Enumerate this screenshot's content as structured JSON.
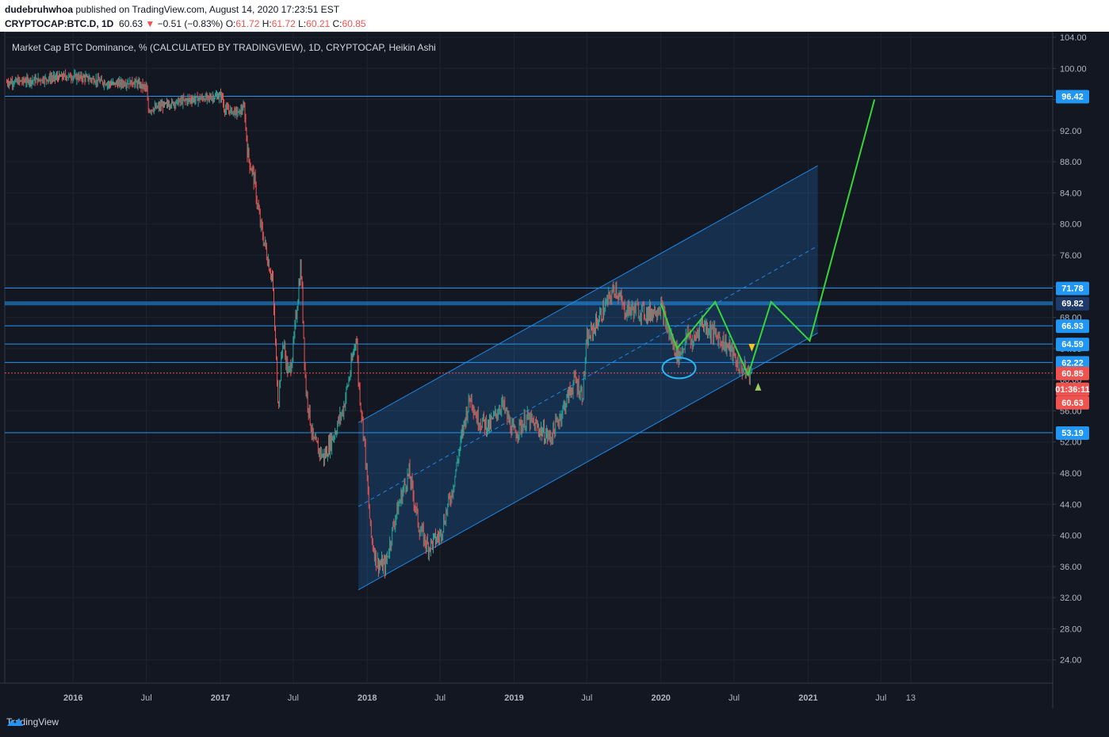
{
  "header": {
    "author": "dudebruhwhoa",
    "published_text": "published on TradingView.com, August 14, 2020 17:23:51 EST",
    "symbol": "CRYPTOCAP:BTC.D, 1D",
    "last": "60.63",
    "change": "−0.51 (−0.83%)",
    "o_label": "O:",
    "o": "61.72",
    "h_label": "H:",
    "h": "61.72",
    "l_label": "L:",
    "l": "60.21",
    "c_label": "C:",
    "c": "60.85"
  },
  "chart_title": "Market Cap BTC Dominance, % (CALCULATED BY TRADINGVIEW), 1D, CRYPTOCAP, Heikin Ashi",
  "footer": {
    "brand": "TradingView"
  },
  "colors": {
    "background": "#131722",
    "up": "#26a69a",
    "down": "#ef5350",
    "hline": "#2196f3",
    "channel": "#1e88e5",
    "projection": "#39d33a",
    "circle": "#29b6f6",
    "label_bg": "#2196f3",
    "price_label_bg": "#ef5350"
  },
  "chart_data": {
    "type": "candlestick",
    "ylim": [
      20,
      104
    ],
    "y_ticks": [
      "104.00",
      "100.00",
      "96.00",
      "92.00",
      "88.00",
      "84.00",
      "80.00",
      "76.00",
      "72.00",
      "68.00",
      "64.00",
      "60.00",
      "56.00",
      "52.00",
      "48.00",
      "44.00",
      "40.00",
      "36.00",
      "32.00",
      "28.00",
      "24.00"
    ],
    "y_tick_values": [
      104,
      100,
      96,
      92,
      88,
      84,
      80,
      76,
      72,
      68,
      64,
      60,
      56,
      52,
      48,
      44,
      40,
      36,
      32,
      28,
      24
    ],
    "x_ticks": [
      "2016",
      "Jul",
      "2017",
      "Jul",
      "2018",
      "Jul",
      "2019",
      "Jul",
      "2020",
      "Jul",
      "2021",
      "Jul",
      "13"
    ],
    "x_tick_dates": [
      "2016-01-01",
      "2016-07-01",
      "2017-01-01",
      "2017-07-01",
      "2018-01-01",
      "2018-07-01",
      "2019-01-01",
      "2019-07-01",
      "2020-01-01",
      "2020-07-01",
      "2021-01-01",
      "2021-07-01",
      "2021-09-13"
    ],
    "x_range": [
      "2015-07-15",
      "2022-09-01"
    ],
    "series_path": [
      [
        "2015-07-20",
        98.2
      ],
      [
        "2015-10-01",
        98.5
      ],
      [
        "2015-12-15",
        99.0
      ],
      [
        "2016-02-01",
        98.8
      ],
      [
        "2016-04-01",
        98.0
      ],
      [
        "2016-06-01",
        98.2
      ],
      [
        "2016-07-01",
        97.5
      ],
      [
        "2016-07-06",
        94.6
      ],
      [
        "2016-08-15",
        95.3
      ],
      [
        "2016-10-15",
        96.0
      ],
      [
        "2016-12-01",
        96.2
      ],
      [
        "2017-01-05",
        96.5
      ],
      [
        "2017-01-10",
        94.8
      ],
      [
        "2017-02-15",
        94.3
      ],
      [
        "2017-03-01",
        95.0
      ],
      [
        "2017-03-10",
        89.0
      ],
      [
        "2017-03-25",
        86.0
      ],
      [
        "2017-04-10",
        80.0
      ],
      [
        "2017-05-10",
        73.0
      ],
      [
        "2017-05-25",
        57.0
      ],
      [
        "2017-06-05",
        65.0
      ],
      [
        "2017-06-20",
        60.5
      ],
      [
        "2017-07-01",
        64.0
      ],
      [
        "2017-07-20",
        75.0
      ],
      [
        "2017-08-01",
        59.0
      ],
      [
        "2017-08-20",
        52.0
      ],
      [
        "2017-09-15",
        50.0
      ],
      [
        "2017-10-10",
        53.0
      ],
      [
        "2017-11-01",
        56.0
      ],
      [
        "2017-11-20",
        61.0
      ],
      [
        "2017-12-05",
        66.0
      ],
      [
        "2017-12-10",
        60.0
      ],
      [
        "2017-12-25",
        52.0
      ],
      [
        "2018-01-10",
        40.0
      ],
      [
        "2018-01-25",
        36.5
      ],
      [
        "2018-02-15",
        36.0
      ],
      [
        "2018-03-10",
        42.0
      ],
      [
        "2018-04-01",
        46.0
      ],
      [
        "2018-04-15",
        48.0
      ],
      [
        "2018-05-10",
        41.0
      ],
      [
        "2018-06-01",
        38.5
      ],
      [
        "2018-07-01",
        40.0
      ],
      [
        "2018-08-01",
        46.0
      ],
      [
        "2018-09-01",
        55.0
      ],
      [
        "2018-09-15",
        58.0
      ],
      [
        "2018-10-01",
        55.0
      ],
      [
        "2018-11-01",
        54.0
      ],
      [
        "2018-12-01",
        57.0
      ],
      [
        "2019-01-01",
        53.0
      ],
      [
        "2019-02-01",
        55.0
      ],
      [
        "2019-04-01",
        52.5
      ],
      [
        "2019-05-01",
        56.0
      ],
      [
        "2019-06-01",
        60.0
      ],
      [
        "2019-06-20",
        58.0
      ],
      [
        "2019-07-01",
        65.0
      ],
      [
        "2019-08-01",
        68.0
      ],
      [
        "2019-09-01",
        71.0
      ],
      [
        "2019-09-10",
        72.0
      ],
      [
        "2019-10-01",
        69.0
      ],
      [
        "2019-11-01",
        69.0
      ],
      [
        "2019-12-01",
        68.5
      ],
      [
        "2020-01-01",
        69.5
      ],
      [
        "2020-01-20",
        66.0
      ],
      [
        "2020-02-05",
        64.0
      ],
      [
        "2020-02-15",
        63.0
      ],
      [
        "2020-03-10",
        66.0
      ],
      [
        "2020-03-20",
        64.5
      ],
      [
        "2020-04-10",
        67.5
      ],
      [
        "2020-05-10",
        66.0
      ],
      [
        "2020-06-01",
        65.0
      ],
      [
        "2020-06-20",
        64.0
      ],
      [
        "2020-07-10",
        62.0
      ],
      [
        "2020-08-01",
        61.0
      ],
      [
        "2020-08-14",
        60.63
      ]
    ],
    "horizontal_levels": [
      {
        "value": 96.42,
        "label": "96.42"
      },
      {
        "value": 71.78,
        "label": "71.78"
      },
      {
        "value": 69.82,
        "label": "69.82",
        "thick": true
      },
      {
        "value": 66.93,
        "label": "66.93"
      },
      {
        "value": 64.59,
        "label": "64.59"
      },
      {
        "value": 62.22,
        "label": "62.22"
      },
      {
        "value": 53.19,
        "label": "53.19"
      }
    ],
    "current_price": {
      "close": "60.85",
      "countdown": "01:36:11",
      "last": "60.63"
    },
    "channel": {
      "start": "2017-12-10",
      "end": "2021-01-25",
      "lower_start": 33.0,
      "lower_end": 66.0,
      "upper_start": 54.5,
      "upper_end": 87.5,
      "mid_start": 43.7,
      "mid_end": 77.2
    },
    "projection_path": [
      [
        "2020-01-01",
        69.8
      ],
      [
        "2020-02-10",
        64.0
      ],
      [
        "2020-05-15",
        70.0
      ],
      [
        "2020-08-05",
        60.6
      ],
      [
        "2020-10-01",
        70.0
      ],
      [
        "2021-01-05",
        65.0
      ],
      [
        "2021-06-15",
        96.0
      ]
    ],
    "circle": {
      "date": "2020-02-15",
      "value": 61.5
    }
  }
}
